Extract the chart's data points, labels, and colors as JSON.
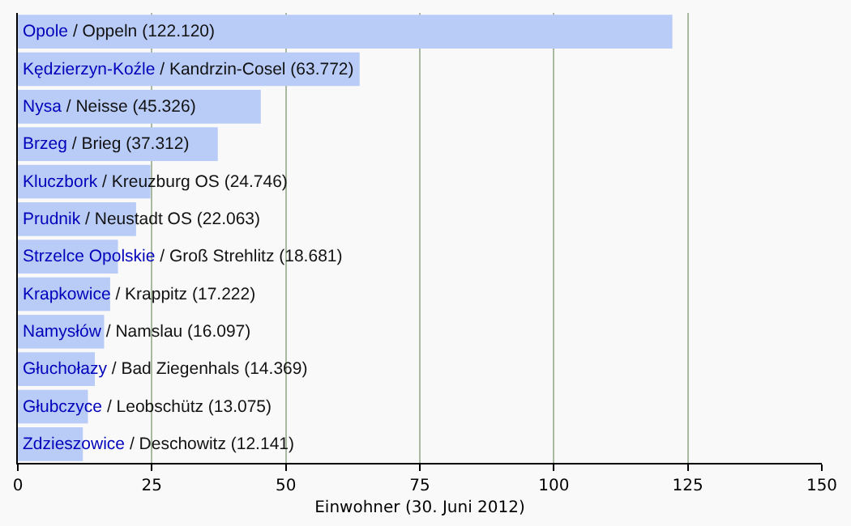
{
  "chart_data": {
    "type": "bar",
    "orientation": "horizontal",
    "xlabel": "Einwohner (30. Juni 2012)",
    "categories": [
      "Opole",
      "Kędzierzyn-Koźle",
      "Nysa",
      "Brzeg",
      "Kluczbork",
      "Prudnik",
      "Strzelce Opolskie",
      "Krapkowice",
      "Namysłów",
      "Głuchołazy",
      "Głubczyce",
      "Zdzieszowice"
    ],
    "values": [
      122.12,
      63.772,
      45.326,
      37.312,
      24.746,
      22.063,
      18.681,
      17.222,
      16.097,
      14.369,
      13.075,
      12.141
    ],
    "value_labels": [
      "/ Oppeln (122.120)",
      "/ Kandrzin-Cosel (63.772)",
      "/ Neisse (45.326)",
      "/ Brieg (37.312)",
      "/ Kreuzburg OS (24.746)",
      "/ Neustadt OS (22.063)",
      "/ Groß Strehlitz (18.681)",
      "/ Krappitz (17.222)",
      "/ Namslau (16.097)",
      "/ Bad Ziegenhals (14.369)",
      "/ Leobschütz (13.075)",
      "/ Deschowitz (12.141)"
    ],
    "color": "#b9ccf7",
    "xlim": [
      0,
      150
    ],
    "xticks": [
      0,
      25,
      50,
      75,
      100,
      125,
      150
    ],
    "grid": "x",
    "tick_labels": "x"
  }
}
